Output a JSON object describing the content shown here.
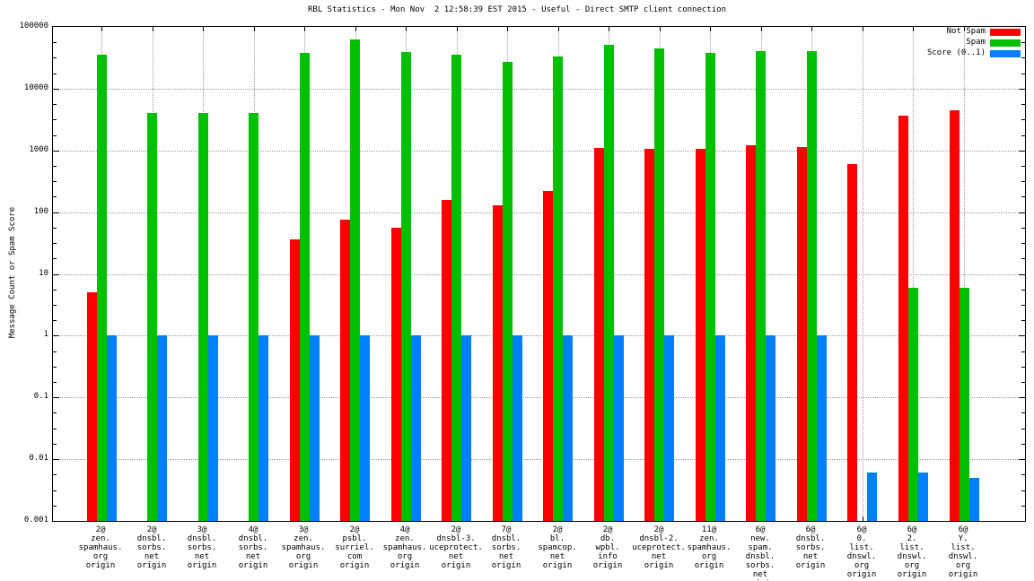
{
  "title": "RBL Statistics - Mon Nov  2 12:58:39 EST 2015 - Useful - Direct SMTP client connection",
  "chart_data": {
    "type": "bar",
    "scale": "log",
    "title": "RBL Statistics - Mon Nov  2 12:58:39 EST 2015 - Useful - Direct SMTP client connection",
    "xlabel": "",
    "ylabel": "Message Count or Spam Score",
    "ylim": [
      0.001,
      100000
    ],
    "ytick_labels": [
      "100000",
      "10000",
      "1000",
      "100",
      "10",
      "1",
      "0.1",
      "0.01",
      "0.001"
    ],
    "grid": true,
    "legend_position": "top-right",
    "legend": [
      {
        "name": "Not Spam",
        "color": "#ff0000"
      },
      {
        "name": "Spam",
        "color": "#00c000"
      },
      {
        "name": "Score (0..1)",
        "color": "#0080ff"
      }
    ],
    "categories": [
      [
        "2@",
        "zen.",
        "spamhaus.",
        "org",
        "origin"
      ],
      [
        "2@",
        "dnsbl.",
        "sorbs.",
        "net",
        "origin"
      ],
      [
        "3@",
        "dnsbl.",
        "sorbs.",
        "net",
        "origin"
      ],
      [
        "4@",
        "dnsbl.",
        "sorbs.",
        "net",
        "origin"
      ],
      [
        "3@",
        "zen.",
        "spamhaus.",
        "org",
        "origin"
      ],
      [
        "2@",
        "psbl.",
        "surriel.",
        "com",
        "origin"
      ],
      [
        "4@",
        "zen.",
        "spamhaus.",
        "org",
        "origin"
      ],
      [
        "2@",
        "dnsbl-3.",
        "uceprotect.",
        "net",
        "origin"
      ],
      [
        "7@",
        "dnsbl.",
        "sorbs.",
        "net",
        "origin"
      ],
      [
        "2@",
        "bl.",
        "spamcop.",
        "net",
        "origin"
      ],
      [
        "2@",
        "db.",
        "wpbl.",
        "info",
        "origin"
      ],
      [
        "2@",
        "dnsbl-2.",
        "uceprotect.",
        "net",
        "origin"
      ],
      [
        "11@",
        "zen.",
        "spamhaus.",
        "org",
        "origin"
      ],
      [
        "6@",
        "new.",
        "spam.",
        "dnsbl.",
        "sorbs.",
        "net",
        "origin"
      ],
      [
        "6@",
        "dnsbl.",
        "sorbs.",
        "net",
        "origin"
      ],
      [
        "6@",
        "0.",
        "list.",
        "dnswl.",
        "org",
        "origin"
      ],
      [
        "6@",
        "2.",
        "list.",
        "dnswl.",
        "org",
        "origin"
      ],
      [
        "6@",
        "Y.",
        "list.",
        "dnswl.",
        "org",
        "origin"
      ]
    ],
    "series": [
      {
        "name": "Not Spam",
        "color": "#ff0000",
        "values": [
          5,
          0,
          0,
          0,
          36,
          75,
          56,
          160,
          130,
          220,
          1100,
          1050,
          1070,
          1200,
          1150,
          600,
          3700,
          4500
        ]
      },
      {
        "name": "Spam",
        "color": "#00c000",
        "values": [
          36000,
          4000,
          4000,
          4000,
          38000,
          63000,
          39000,
          35000,
          27000,
          33000,
          52000,
          45000,
          38000,
          41000,
          41000,
          0,
          6,
          6
        ]
      },
      {
        "name": "Score (0..1)",
        "color": "#0080ff",
        "values": [
          1,
          1,
          1,
          1,
          1,
          1,
          1,
          1,
          1,
          1,
          1,
          1,
          1,
          1,
          1,
          0.006,
          0.006,
          0.005
        ]
      }
    ]
  }
}
